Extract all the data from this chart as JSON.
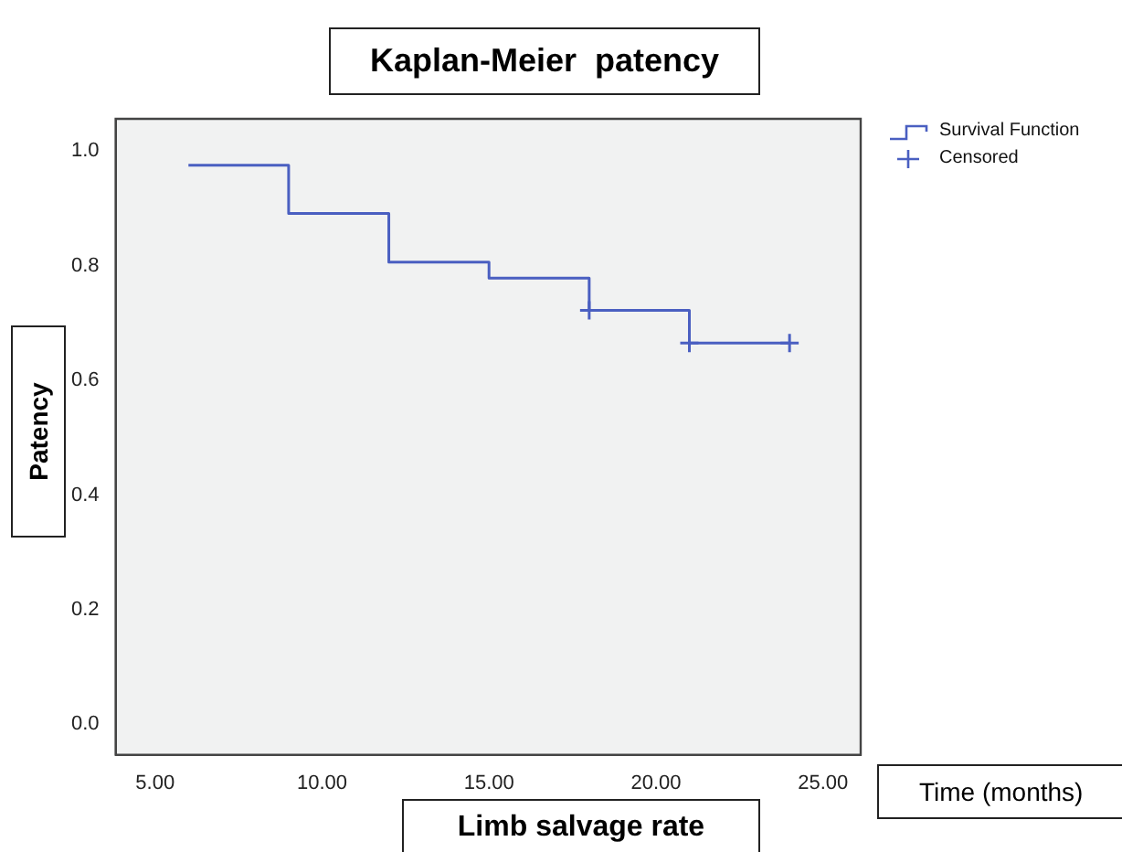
{
  "chart_data": {
    "type": "step",
    "title": "Kaplan-Meier  patency",
    "xlabel": "Limb salvage rate",
    "ylabel": "Patency",
    "annotations": [
      "Time (months)"
    ],
    "series": [
      {
        "name": "Survival Function",
        "type": "step",
        "color": "#4a5fc1",
        "x": [
          6,
          9,
          12,
          15,
          18,
          21,
          24
        ],
        "values": [
          0.975,
          0.891,
          0.806,
          0.778,
          0.722,
          0.665,
          0.665
        ]
      },
      {
        "name": "Censored",
        "type": "scatter",
        "marker": "cross",
        "color": "#4a5fc1",
        "x": [
          18,
          21,
          24
        ],
        "values": [
          0.722,
          0.665,
          0.665
        ]
      }
    ],
    "xlim": [
      3.82,
      26.13
    ],
    "xticks": [
      {
        "value": 5,
        "label": "5.00"
      },
      {
        "value": 10,
        "label": "10.00"
      },
      {
        "value": 15,
        "label": "15.00"
      },
      {
        "value": 20,
        "label": "20.00"
      },
      {
        "value": 25,
        "label": "25.00"
      }
    ],
    "ylim": [
      -0.053,
      1.056
    ],
    "yticks": [
      {
        "value": 0,
        "label": "0.0"
      },
      {
        "value": 0.2,
        "label": "0.2"
      },
      {
        "value": 0.4,
        "label": "0.4"
      },
      {
        "value": 0.6,
        "label": "0.6"
      },
      {
        "value": 0.8,
        "label": "0.8"
      },
      {
        "value": 1,
        "label": "1.0"
      }
    ],
    "legend": "top right",
    "grid": false
  }
}
